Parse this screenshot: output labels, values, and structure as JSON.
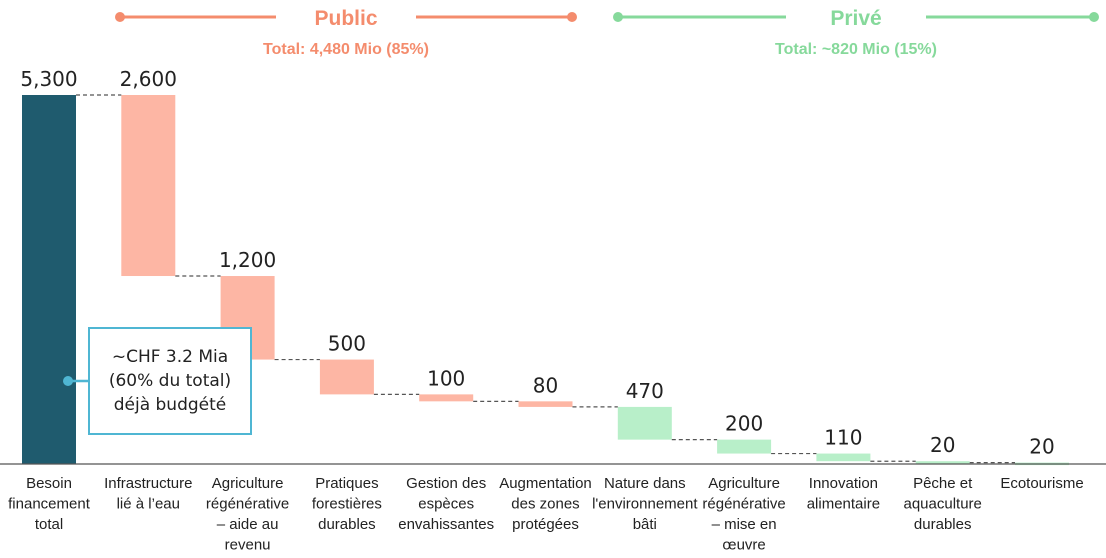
{
  "chart_data": {
    "type": "waterfall",
    "ylim": [
      0,
      5300
    ],
    "colors": {
      "total": "#1f5b6e",
      "public": "#fdb6a4",
      "private": "#b8efc9",
      "public_header": "#f48c6d",
      "private_header": "#86d99b",
      "callout_border": "#4fb6d3"
    },
    "groups": [
      {
        "name": "Public",
        "total_label": "Total: 4,480 Mio (85%)",
        "kind": "public"
      },
      {
        "name": "Privé",
        "total_label": "Total: ~820 Mio (15%)",
        "kind": "private"
      }
    ],
    "bars": [
      {
        "label": "Besoin\nfinancement\ntotal",
        "value": 5300,
        "value_label": "5,300",
        "kind": "total"
      },
      {
        "label": "Infrastructure\nlié à l’eau",
        "value": 2600,
        "value_label": "2,600",
        "kind": "public"
      },
      {
        "label": "Agriculture\nrégénérative\n– aide au\nrevenu",
        "value": 1200,
        "value_label": "1,200",
        "kind": "public"
      },
      {
        "label": "Pratiques\nforestières\ndurables",
        "value": 500,
        "value_label": "500",
        "kind": "public"
      },
      {
        "label": "Gestion des\nespèces\nenvahissantes",
        "value": 100,
        "value_label": "100",
        "kind": "public"
      },
      {
        "label": "Augmentation\ndes zones\nprotégées",
        "value": 80,
        "value_label": "80",
        "kind": "public"
      },
      {
        "label": "Nature dans\nl'environnement\nbâti",
        "value": 470,
        "value_label": "470",
        "kind": "private"
      },
      {
        "label": "Agriculture\nrégénérative\n– mise en\nœuvre",
        "value": 200,
        "value_label": "200",
        "kind": "private"
      },
      {
        "label": "Innovation\nalimentaire",
        "value": 110,
        "value_label": "110",
        "kind": "private"
      },
      {
        "label": "Pêche et\naquaculture\ndurables",
        "value": 20,
        "value_label": "20",
        "kind": "private"
      },
      {
        "label": "Ecotourisme",
        "value": 20,
        "value_label": "20",
        "kind": "private"
      }
    ],
    "callout": "~CHF 3.2 Mia\n(60% du total)\ndéjà budgété"
  }
}
